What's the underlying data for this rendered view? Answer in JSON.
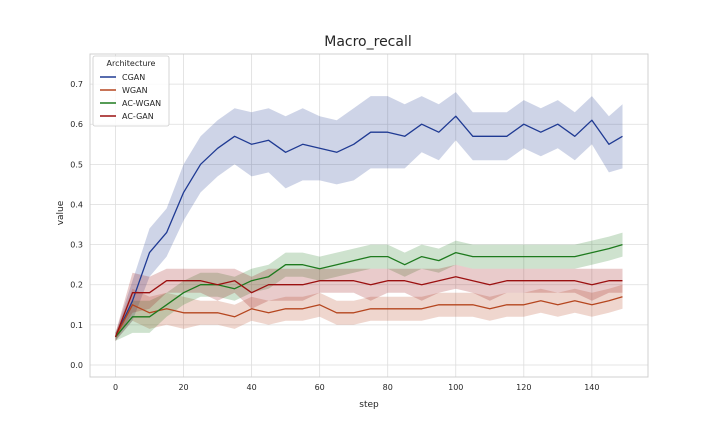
{
  "chart_data": {
    "type": "line",
    "title": "Macro_recall",
    "xlabel": "step",
    "ylabel": "value",
    "xlim": [
      -7.5,
      156.5
    ],
    "ylim": [
      -0.03,
      0.775
    ],
    "xticks": [
      0,
      20,
      40,
      60,
      80,
      100,
      120,
      140
    ],
    "yticks": [
      0.0,
      0.1,
      0.2,
      0.3,
      0.4,
      0.5,
      0.6,
      0.7
    ],
    "grid": true,
    "legend": {
      "title": "Architecture",
      "placement": "top-left"
    },
    "series": [
      {
        "name": "CGAN",
        "color": "#1f3a93",
        "x": [
          0,
          5,
          10,
          15,
          20,
          25,
          30,
          35,
          40,
          45,
          50,
          55,
          60,
          65,
          70,
          75,
          80,
          85,
          90,
          95,
          100,
          105,
          110,
          115,
          120,
          125,
          130,
          135,
          140,
          145,
          149
        ],
        "values": [
          0.07,
          0.16,
          0.28,
          0.33,
          0.43,
          0.5,
          0.54,
          0.57,
          0.55,
          0.56,
          0.53,
          0.55,
          0.54,
          0.53,
          0.55,
          0.58,
          0.58,
          0.57,
          0.6,
          0.58,
          0.62,
          0.57,
          0.57,
          0.57,
          0.6,
          0.58,
          0.6,
          0.57,
          0.61,
          0.55,
          0.57
        ],
        "band": [
          0.01,
          0.05,
          0.06,
          0.06,
          0.07,
          0.07,
          0.07,
          0.07,
          0.08,
          0.08,
          0.09,
          0.09,
          0.08,
          0.08,
          0.09,
          0.09,
          0.09,
          0.08,
          0.07,
          0.07,
          0.06,
          0.06,
          0.06,
          0.06,
          0.06,
          0.06,
          0.06,
          0.06,
          0.06,
          0.07,
          0.08
        ]
      },
      {
        "name": "WGAN",
        "color": "#b5461f",
        "x": [
          0,
          5,
          10,
          15,
          20,
          25,
          30,
          35,
          40,
          45,
          50,
          55,
          60,
          65,
          70,
          75,
          80,
          85,
          90,
          95,
          100,
          105,
          110,
          115,
          120,
          125,
          130,
          135,
          140,
          145,
          149
        ],
        "values": [
          0.07,
          0.15,
          0.13,
          0.14,
          0.13,
          0.13,
          0.13,
          0.12,
          0.14,
          0.13,
          0.14,
          0.14,
          0.15,
          0.13,
          0.13,
          0.14,
          0.14,
          0.14,
          0.14,
          0.15,
          0.15,
          0.15,
          0.14,
          0.15,
          0.15,
          0.16,
          0.15,
          0.16,
          0.15,
          0.16,
          0.17
        ],
        "band": [
          0.01,
          0.04,
          0.04,
          0.04,
          0.04,
          0.03,
          0.03,
          0.03,
          0.03,
          0.03,
          0.03,
          0.03,
          0.03,
          0.03,
          0.03,
          0.03,
          0.03,
          0.03,
          0.03,
          0.03,
          0.03,
          0.03,
          0.03,
          0.03,
          0.03,
          0.03,
          0.03,
          0.03,
          0.03,
          0.03,
          0.03
        ]
      },
      {
        "name": "AC-WGAN",
        "color": "#1e7a1e",
        "x": [
          0,
          5,
          10,
          15,
          20,
          25,
          30,
          35,
          40,
          45,
          50,
          55,
          60,
          65,
          70,
          75,
          80,
          85,
          90,
          95,
          100,
          105,
          110,
          115,
          120,
          125,
          130,
          135,
          140,
          145,
          149
        ],
        "values": [
          0.07,
          0.12,
          0.12,
          0.15,
          0.18,
          0.2,
          0.2,
          0.19,
          0.21,
          0.22,
          0.25,
          0.25,
          0.24,
          0.25,
          0.26,
          0.27,
          0.27,
          0.25,
          0.27,
          0.26,
          0.28,
          0.27,
          0.27,
          0.27,
          0.27,
          0.27,
          0.27,
          0.27,
          0.28,
          0.29,
          0.3
        ],
        "band": [
          0.01,
          0.04,
          0.04,
          0.03,
          0.03,
          0.03,
          0.03,
          0.03,
          0.03,
          0.03,
          0.03,
          0.03,
          0.03,
          0.03,
          0.03,
          0.03,
          0.03,
          0.03,
          0.03,
          0.03,
          0.03,
          0.03,
          0.03,
          0.03,
          0.03,
          0.03,
          0.03,
          0.03,
          0.03,
          0.03,
          0.03
        ]
      },
      {
        "name": "AC-GAN",
        "color": "#9b1010",
        "x": [
          0,
          5,
          10,
          15,
          20,
          25,
          30,
          35,
          40,
          45,
          50,
          55,
          60,
          65,
          70,
          75,
          80,
          85,
          90,
          95,
          100,
          105,
          110,
          115,
          120,
          125,
          130,
          135,
          140,
          145,
          149
        ],
        "values": [
          0.07,
          0.18,
          0.18,
          0.21,
          0.21,
          0.21,
          0.2,
          0.21,
          0.18,
          0.2,
          0.2,
          0.2,
          0.21,
          0.21,
          0.21,
          0.2,
          0.21,
          0.21,
          0.2,
          0.21,
          0.22,
          0.21,
          0.2,
          0.21,
          0.21,
          0.21,
          0.21,
          0.21,
          0.2,
          0.21,
          0.21
        ],
        "band": [
          0.01,
          0.05,
          0.04,
          0.03,
          0.03,
          0.03,
          0.04,
          0.03,
          0.04,
          0.04,
          0.04,
          0.04,
          0.03,
          0.03,
          0.03,
          0.04,
          0.03,
          0.03,
          0.04,
          0.03,
          0.03,
          0.03,
          0.04,
          0.03,
          0.03,
          0.03,
          0.03,
          0.03,
          0.04,
          0.03,
          0.03
        ]
      }
    ]
  }
}
